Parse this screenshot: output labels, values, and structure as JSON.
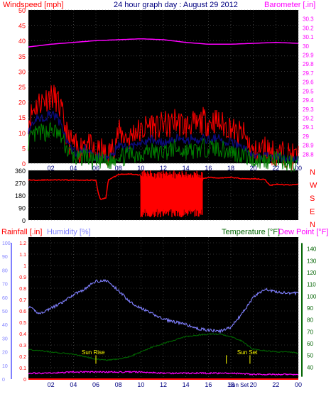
{
  "colors": {
    "background": "#ffffff",
    "plot_bg": "#000000",
    "wind_max": "#ff0000",
    "wind_avg": "#0b0b7a",
    "wind_min": "#008000",
    "barometer": "#ff00ff",
    "direction": "#ff0000",
    "humidity": "#8080ff",
    "temperature": "#006400",
    "dew_point": "#ff00ff",
    "rainfall": "#ff0000",
    "sun_marker": "#ffff00",
    "grid": "#606060",
    "title": "#000080"
  },
  "chart_data": [
    {
      "type": "line",
      "title": "24 hour graph day : August 29 2012",
      "ylabel": "Windspeed [mph]",
      "y2label": "Barometer [.in]",
      "x_ticks": [
        "02",
        "04",
        "06",
        "08",
        "10",
        "12",
        "14",
        "16",
        "18",
        "20",
        "22",
        "00"
      ],
      "xlim": [
        0,
        24
      ],
      "ylim": [
        0,
        50
      ],
      "y_ticks": [
        "0",
        "5",
        "10",
        "15",
        "20",
        "25",
        "30",
        "35",
        "40",
        "45",
        "50"
      ],
      "y2lim": [
        28.7,
        30.4
      ],
      "y2_ticks": [
        "28.8",
        "28.9",
        "29",
        "29.1",
        "29.2",
        "29.3",
        "29.4",
        "29.5",
        "29.6",
        "29.7",
        "29.8",
        "29.9",
        "30",
        "30.1",
        "30.2",
        "30.3"
      ],
      "grid": true,
      "series": [
        {
          "name": "Barometer",
          "axis": "right",
          "x": [
            0,
            2,
            4,
            6,
            8,
            10,
            12,
            14,
            16,
            18,
            20,
            22,
            24
          ],
          "values": [
            29.99,
            30.02,
            30.04,
            30.06,
            30.07,
            30.08,
            30.07,
            30.04,
            30.02,
            30.02,
            30.03,
            30.04,
            30.03
          ]
        },
        {
          "x": [
            0,
            0.5,
            1,
            1.5,
            2,
            2.5,
            3,
            3.5,
            4,
            4.5,
            5,
            5.5,
            6,
            6.5,
            7,
            7.5,
            8,
            8.5,
            9,
            9.5,
            10,
            10.5,
            11,
            11.5,
            12,
            12.5,
            13,
            13.5,
            14,
            14.5,
            15,
            15.5,
            16,
            16.5,
            17,
            17.5,
            18,
            18.5,
            19,
            19.5,
            20,
            20.5,
            21,
            21.5,
            22,
            22.5,
            23,
            23.5,
            24
          ],
          "values": [
            14,
            18,
            20,
            21,
            22,
            21,
            16,
            8,
            6,
            4,
            8,
            5,
            3,
            4,
            2,
            5,
            10,
            9,
            8,
            11,
            10,
            12,
            13,
            11,
            13,
            12,
            14,
            13,
            12,
            13,
            12,
            14,
            13,
            14,
            13,
            12,
            12,
            9,
            10,
            7,
            3,
            4,
            5,
            4,
            3,
            3,
            3,
            2,
            2
          ]
        },
        {
          "x": [
            0,
            0.5,
            1,
            1.5,
            2,
            2.5,
            3,
            3.5,
            4,
            4.5,
            5,
            5.5,
            6,
            6.5,
            7,
            7.5,
            8,
            8.5,
            9,
            9.5,
            10,
            10.5,
            11,
            11.5,
            12,
            12.5,
            13,
            13.5,
            14,
            14.5,
            15,
            15.5,
            16,
            16.5,
            17,
            17.5,
            18,
            18.5,
            19,
            19.5,
            20,
            20.5,
            21,
            21.5,
            22,
            22.5,
            23,
            23.5,
            24
          ],
          "values": [
            11,
            14,
            15,
            15,
            16,
            15,
            12,
            6,
            4,
            3,
            5,
            3,
            2,
            2,
            1,
            3,
            6,
            5,
            5,
            6,
            6,
            7,
            8,
            7,
            7,
            7,
            8,
            8,
            7,
            8,
            7,
            8,
            8,
            8,
            8,
            7,
            7,
            6,
            6,
            4,
            2,
            2,
            3,
            2,
            2,
            2,
            1,
            1,
            1
          ]
        },
        {
          "x": [
            0,
            0.5,
            1,
            1.5,
            2,
            2.5,
            3,
            3.5,
            4,
            4.5,
            5,
            5.5,
            6,
            6.5,
            7,
            7.5,
            8,
            8.5,
            9,
            9.5,
            10,
            10.5,
            11,
            11.5,
            12,
            12.5,
            13,
            13.5,
            14,
            14.5,
            15,
            15.5,
            16,
            16.5,
            17,
            17.5,
            18,
            18.5,
            19,
            19.5,
            20,
            20.5,
            21,
            21.5,
            22,
            22.5,
            23,
            23.5,
            24
          ],
          "values": [
            7,
            9,
            10,
            10,
            11,
            10,
            8,
            4,
            2,
            1,
            3,
            1,
            0,
            1,
            0,
            1,
            3,
            2,
            3,
            3,
            3,
            4,
            4,
            3,
            4,
            4,
            5,
            4,
            4,
            4,
            4,
            5,
            5,
            5,
            5,
            4,
            4,
            3,
            3,
            2,
            1,
            1,
            1,
            1,
            1,
            1,
            0,
            0,
            0
          ]
        }
      ]
    },
    {
      "type": "line",
      "y_ticks": [
        "0",
        "90",
        "180",
        "270",
        "360"
      ],
      "ylim": [
        0,
        360
      ],
      "y2_ticks": [
        "N",
        "W",
        "S",
        "E",
        "N"
      ],
      "xlim": [
        0,
        24
      ],
      "series": [
        {
          "x": [
            0,
            1,
            2,
            3,
            4,
            5,
            6,
            6.2,
            6.4,
            6.9,
            7.1,
            8,
            9,
            10,
            10.1,
            10.5,
            11,
            11.5,
            12,
            12.5,
            13,
            13.5,
            14,
            14.5,
            15,
            15.5,
            16,
            17,
            18,
            19,
            20,
            21,
            21.5,
            22,
            23,
            24
          ],
          "values": [
            290,
            290,
            291,
            290,
            290,
            290,
            288,
            200,
            150,
            160,
            290,
            330,
            335,
            325,
            60,
            330,
            40,
            340,
            30,
            330,
            25,
            340,
            50,
            320,
            60,
            300,
            310,
            305,
            310,
            300,
            300,
            295,
            250,
            260,
            255,
            258
          ]
        }
      ]
    },
    {
      "type": "line",
      "ylabel": "Rainfall [.in]",
      "ylabel2": "Humidity [%]",
      "y2label": "Temperature [°F]",
      "y2label2": "Dew Point [°F]",
      "x_ticks": [
        "02",
        "04",
        "06",
        "08",
        "10",
        "12",
        "14",
        "16",
        "18",
        "20",
        "22",
        "00"
      ],
      "xlim": [
        0,
        24
      ],
      "rain_ticks": [
        "0",
        "0.1",
        "0.2",
        "0.3",
        "0.4",
        "0.5",
        "0.6",
        "0.7",
        "0.8",
        "0.9",
        "1",
        "1.1",
        "1.2"
      ],
      "rain_lim": [
        0,
        1.2
      ],
      "humidity_ticks": [
        "0",
        "10",
        "20",
        "30",
        "40",
        "50",
        "60",
        "70",
        "80",
        "90",
        "100"
      ],
      "humidity_lim": [
        0,
        100
      ],
      "temp_ticks": [
        "40",
        "50",
        "60",
        "70",
        "80",
        "90",
        "100",
        "110",
        "120",
        "130",
        "140"
      ],
      "temp_lim": [
        30,
        150
      ],
      "annotations": [
        "Sun Rise",
        "Sun Set",
        "Sun Set"
      ],
      "annotation_x": [
        6.0,
        19.7,
        17.6
      ],
      "series": [
        {
          "x": [
            0,
            1,
            2,
            3,
            4,
            5,
            6,
            7,
            8,
            9,
            10,
            11,
            12,
            13,
            14,
            15,
            16,
            17,
            18,
            19,
            20,
            21,
            22,
            23,
            24
          ],
          "values": [
            53,
            48,
            52,
            56,
            62,
            66,
            72,
            72,
            65,
            57,
            52,
            48,
            44,
            42,
            40,
            37,
            36,
            35,
            38,
            48,
            60,
            66,
            64,
            63,
            63
          ]
        },
        {
          "x": [
            0,
            1,
            2,
            3,
            4,
            5,
            6,
            7,
            8,
            9,
            10,
            11,
            12,
            13,
            14,
            15,
            16,
            17,
            18,
            19,
            20,
            21,
            22,
            23,
            24
          ],
          "values": [
            55,
            54,
            53,
            52,
            51,
            49,
            47,
            46,
            47,
            49,
            53,
            57,
            60,
            63,
            66,
            67,
            68,
            68,
            66,
            62,
            55,
            54,
            53,
            53,
            52
          ]
        },
        {
          "x": [
            0,
            2,
            4,
            6,
            8,
            10,
            12,
            14,
            16,
            18,
            20,
            22,
            24
          ],
          "values": [
            35,
            35,
            36,
            36,
            36,
            36,
            35,
            35,
            35,
            35,
            34,
            34,
            34
          ]
        },
        {
          "x": [
            0,
            24
          ],
          "values": [
            0,
            0
          ]
        }
      ]
    }
  ]
}
